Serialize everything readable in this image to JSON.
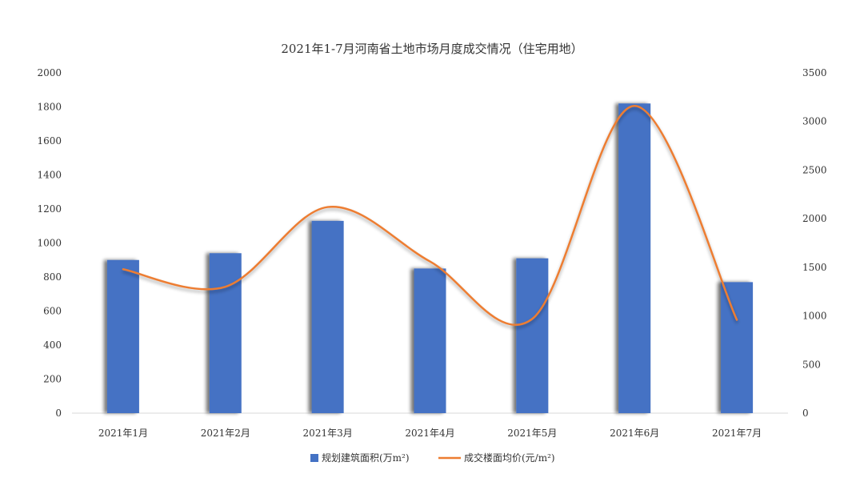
{
  "chart_data": {
    "type": "bar",
    "title": "2021年1-7月河南省土地市场月度成交情况（住宅用地）",
    "categories": [
      "2021年1月",
      "2021年2月",
      "2021年3月",
      "2021年4月",
      "2021年5月",
      "2021年6月",
      "2021年7月"
    ],
    "series": [
      {
        "name": "规划建筑面积(万m²)",
        "type": "bar",
        "axis": "left",
        "color": "#4472C4",
        "values": [
          900,
          940,
          1130,
          850,
          910,
          1820,
          770
        ]
      },
      {
        "name": "成交楼面均价(元/m²)",
        "type": "line",
        "axis": "right",
        "color": "#ED7D31",
        "values": [
          1480,
          1300,
          2120,
          1560,
          970,
          3160,
          960
        ]
      }
    ],
    "y_left": {
      "min": 0,
      "max": 2000,
      "ticks": [
        "0",
        "200",
        "400",
        "600",
        "800",
        "1000",
        "1200",
        "1400",
        "1600",
        "1800",
        "2000"
      ]
    },
    "y_right": {
      "min": 0,
      "max": 3500,
      "ticks": [
        "0",
        "500",
        "1000",
        "1500",
        "2000",
        "2500",
        "3000",
        "3500"
      ]
    },
    "grid": false,
    "legend_position": "bottom"
  }
}
